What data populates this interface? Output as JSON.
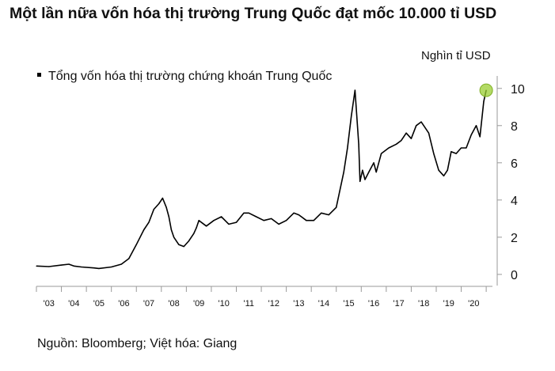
{
  "title": "Một lần nữa vốn hóa thị trường Trung Quốc đạt mốc 10.000 tỉ USD",
  "source": "Nguồn: Bloomberg; Việt hóa: Giang",
  "chart_data": {
    "type": "line",
    "unit_label": "Nghìn tỉ USD",
    "xlabel": "",
    "ylabel": "",
    "x_tick_labels": [
      "'03",
      "'04",
      "'05",
      "'06",
      "'07",
      "'08",
      "'09",
      "'10",
      "'11",
      "'12",
      "'13",
      "'14",
      "'15",
      "'16",
      "'17",
      "'18",
      "'19",
      "'20"
    ],
    "y_ticks": [
      0,
      2,
      4,
      6,
      8,
      10
    ],
    "y_tick_labels": [
      "0",
      "2",
      "4",
      "6",
      "8",
      "10"
    ],
    "ylim": [
      -0.6,
      10.5
    ],
    "xlim": [
      2002.5,
      2020.75
    ],
    "grid": false,
    "legend_position": "top-left",
    "highlight": {
      "x": 2020.5,
      "y": 9.9,
      "color": "#9ACD32"
    },
    "series": [
      {
        "name": "Tổng vốn hóa thị trường chứng khoán Trung Quốc",
        "color": "#000000",
        "x": [
          2002.5,
          2003.0,
          2003.5,
          2003.8,
          2004.0,
          2004.3,
          2004.8,
          2005.0,
          2005.5,
          2005.9,
          2006.2,
          2006.5,
          2006.8,
          2007.0,
          2007.2,
          2007.4,
          2007.55,
          2007.7,
          2007.8,
          2007.9,
          2008.0,
          2008.2,
          2008.4,
          2008.6,
          2008.8,
          2008.9,
          2009.0,
          2009.3,
          2009.6,
          2009.9,
          2010.2,
          2010.5,
          2010.8,
          2011.0,
          2011.3,
          2011.6,
          2011.9,
          2012.2,
          2012.5,
          2012.8,
          2013.0,
          2013.3,
          2013.6,
          2013.9,
          2014.2,
          2014.5,
          2014.8,
          2014.95,
          2015.1,
          2015.25,
          2015.4,
          2015.45,
          2015.55,
          2015.65,
          2015.8,
          2016.0,
          2016.1,
          2016.3,
          2016.6,
          2016.9,
          2017.1,
          2017.3,
          2017.5,
          2017.7,
          2017.9,
          2018.0,
          2018.2,
          2018.4,
          2018.6,
          2018.8,
          2018.95,
          2019.1,
          2019.3,
          2019.5,
          2019.7,
          2019.9,
          2020.1,
          2020.25,
          2020.4,
          2020.5
        ],
        "values": [
          0.45,
          0.42,
          0.5,
          0.55,
          0.45,
          0.4,
          0.35,
          0.32,
          0.4,
          0.55,
          0.85,
          1.6,
          2.4,
          2.8,
          3.5,
          3.8,
          4.1,
          3.6,
          3.1,
          2.4,
          2.0,
          1.6,
          1.5,
          1.8,
          2.2,
          2.5,
          2.9,
          2.6,
          2.9,
          3.1,
          2.7,
          2.8,
          3.3,
          3.3,
          3.1,
          2.9,
          3.0,
          2.7,
          2.9,
          3.3,
          3.2,
          2.9,
          2.9,
          3.3,
          3.2,
          3.6,
          5.5,
          6.8,
          8.5,
          9.9,
          7.0,
          5.0,
          5.6,
          5.1,
          5.5,
          6.0,
          5.5,
          6.5,
          6.8,
          7.0,
          7.2,
          7.6,
          7.3,
          8.0,
          8.2,
          8.0,
          7.6,
          6.5,
          5.6,
          5.3,
          5.6,
          6.6,
          6.5,
          6.8,
          6.8,
          7.5,
          8.0,
          7.4,
          9.3,
          9.9
        ]
      }
    ]
  }
}
